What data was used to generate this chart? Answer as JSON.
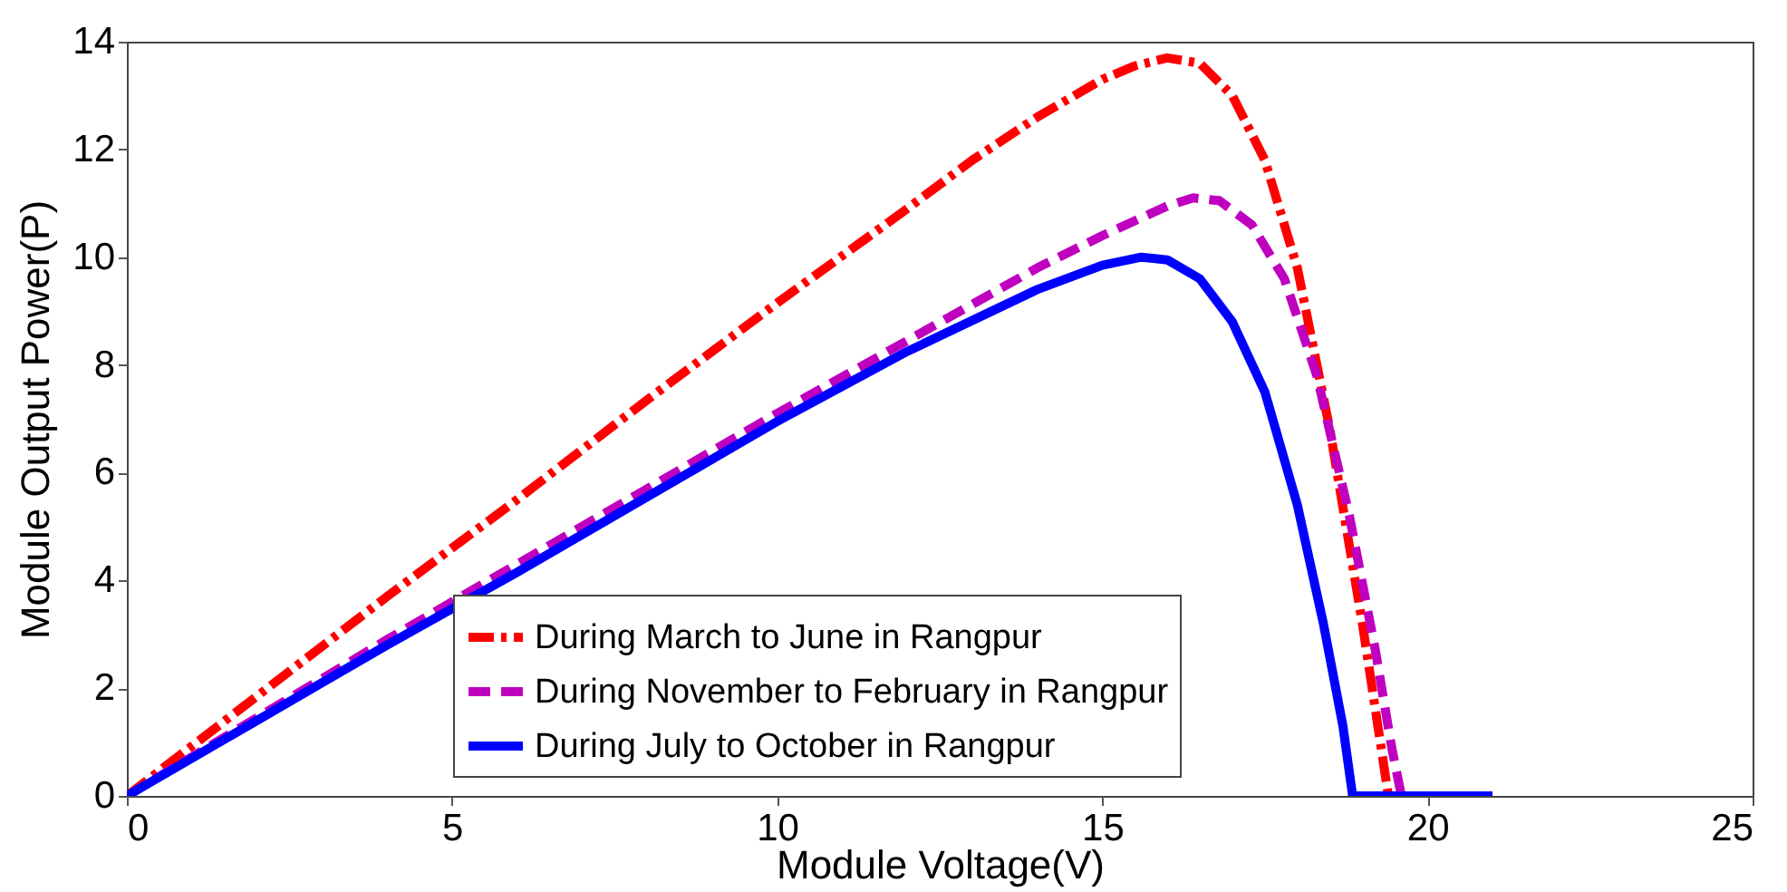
{
  "chart_data": {
    "type": "line",
    "xlabel": "Module Voltage(V)",
    "ylabel": "Module Output Power(P)",
    "xlim": [
      0,
      25
    ],
    "xticks": [
      0,
      5,
      10,
      15,
      20,
      25
    ],
    "ylim": [
      0,
      14
    ],
    "yticks": [
      0,
      2,
      4,
      6,
      8,
      10,
      12,
      14
    ],
    "grid": false,
    "legend": "bottom",
    "marker": "none",
    "series": [
      {
        "name": "During March to June in Rangpur",
        "color": "#ff0000",
        "line_style": "dashdot",
        "x": [
          0,
          2,
          4,
          6,
          8,
          10,
          12,
          13,
          14,
          15,
          15.5,
          16,
          16.5,
          17,
          17.5,
          18,
          18.5,
          19,
          19.2,
          19.4,
          21
        ],
        "values": [
          0,
          1.85,
          3.7,
          5.5,
          7.35,
          9.15,
          10.9,
          11.8,
          12.6,
          13.3,
          13.55,
          13.7,
          13.6,
          13,
          11.8,
          9.8,
          6.8,
          3.2,
          1.6,
          0,
          0
        ]
      },
      {
        "name": "During November to February in Rangpur",
        "color": "#bf00bf",
        "line_style": "dashed",
        "x": [
          0,
          2,
          4,
          6,
          8,
          10,
          12,
          14,
          15,
          16,
          16.4,
          16.8,
          17.3,
          17.8,
          18.3,
          18.8,
          19.2,
          19.45,
          19.6,
          21
        ],
        "values": [
          0,
          1.45,
          2.9,
          4.3,
          5.7,
          7.1,
          8.45,
          9.8,
          10.4,
          10.95,
          11.1,
          11.05,
          10.6,
          9.6,
          7.8,
          5.2,
          2.7,
          0.9,
          0,
          0
        ]
      },
      {
        "name": "During July to October in Rangpur",
        "color": "#0000ff",
        "line_style": "solid",
        "x": [
          0,
          2,
          4,
          6,
          8,
          10,
          12,
          14,
          15,
          15.6,
          16,
          16.5,
          17,
          17.5,
          18,
          18.4,
          18.7,
          18.85,
          21
        ],
        "values": [
          0,
          1.4,
          2.8,
          4.15,
          5.55,
          6.95,
          8.25,
          9.4,
          9.85,
          10,
          9.95,
          9.6,
          8.8,
          7.5,
          5.4,
          3.2,
          1.3,
          0,
          0
        ]
      }
    ]
  }
}
